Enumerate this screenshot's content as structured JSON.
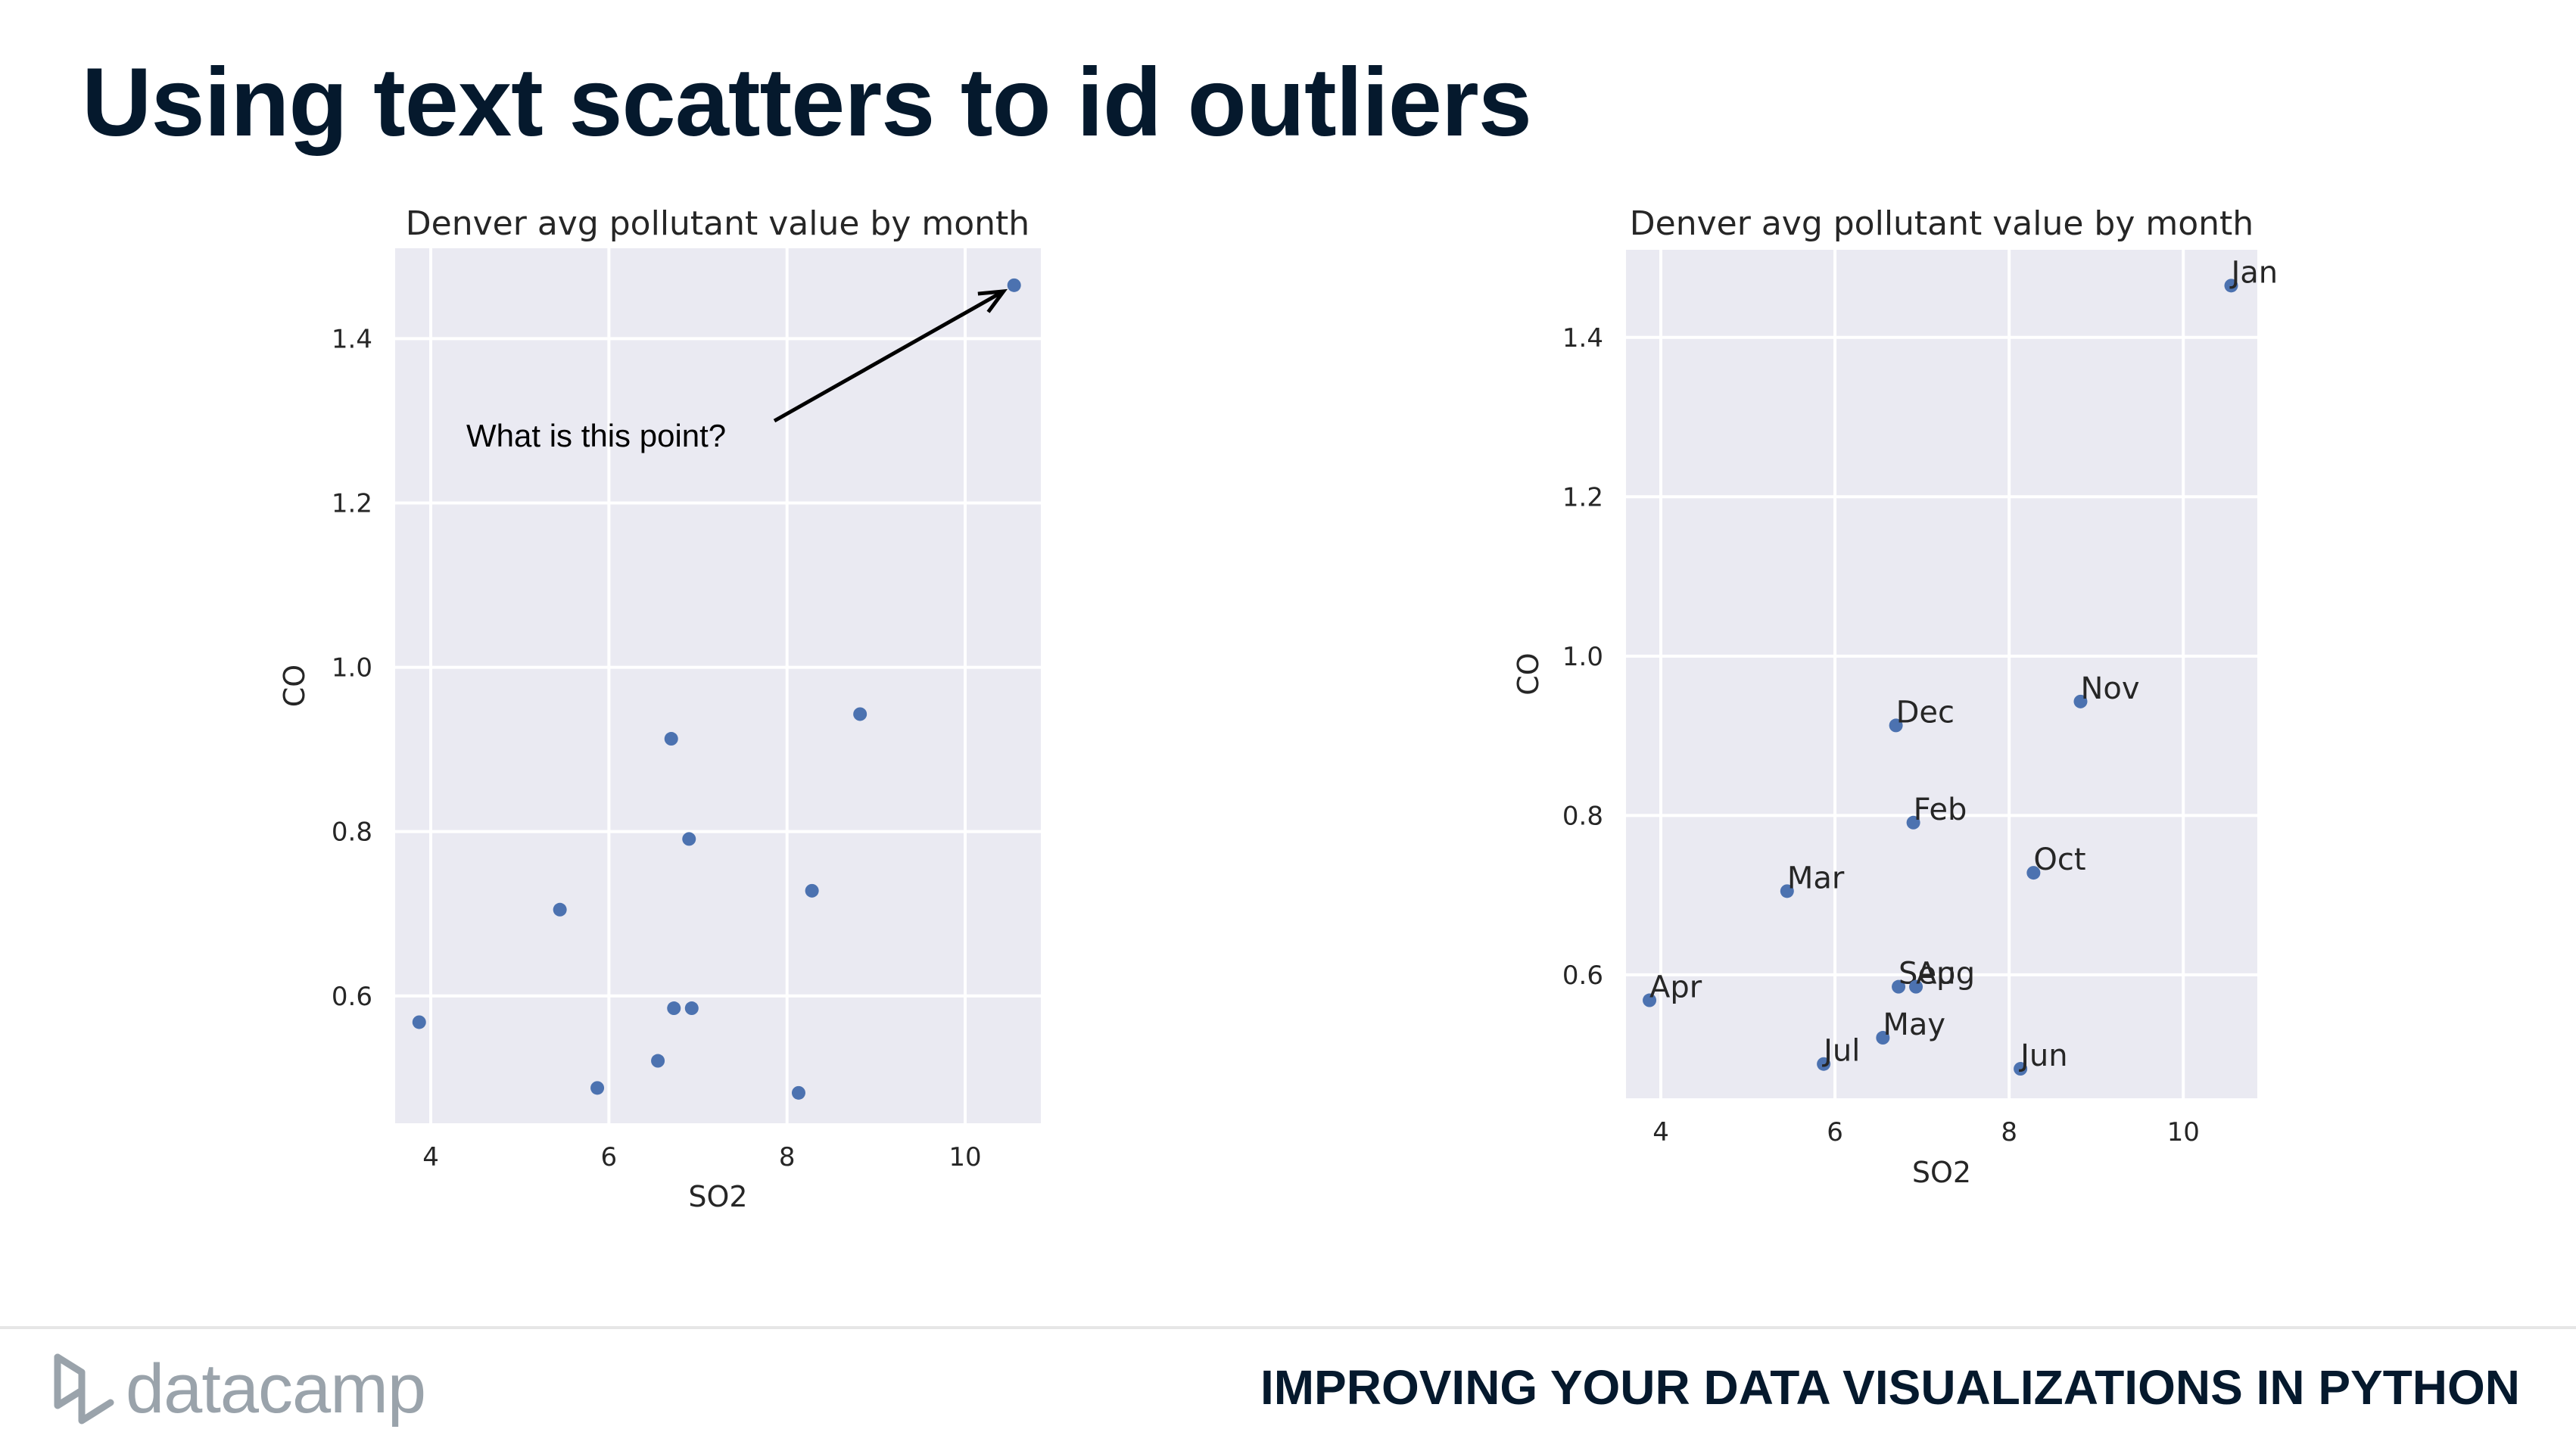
{
  "slide": {
    "title": "Using text scatters to id outliers",
    "course": "IMPROVING YOUR DATA VISUALIZATIONS IN PYTHON",
    "logo_text": "datacamp"
  },
  "colors": {
    "point": "#4c72b0",
    "plot_bg": "#eaeaf2",
    "title": "#05192d"
  },
  "chart_data": [
    {
      "type": "scatter",
      "title": "Denver avg pollutant value by month",
      "xlabel": "SO2",
      "ylabel": "CO",
      "xlim": [
        3.6,
        10.85
      ],
      "ylim": [
        0.445,
        1.51
      ],
      "xticks": [
        4,
        6,
        8,
        10
      ],
      "yticks": [
        0.6,
        0.8,
        1.0,
        1.2,
        1.4
      ],
      "grid": true,
      "annotation": {
        "text": "What is this point?",
        "target": [
          10.55,
          1.465
        ]
      },
      "points": [
        {
          "x": 10.55,
          "y": 1.465
        },
        {
          "x": 8.82,
          "y": 0.943
        },
        {
          "x": 6.7,
          "y": 0.913
        },
        {
          "x": 6.9,
          "y": 0.791
        },
        {
          "x": 8.28,
          "y": 0.728
        },
        {
          "x": 5.45,
          "y": 0.705
        },
        {
          "x": 3.87,
          "y": 0.568
        },
        {
          "x": 6.73,
          "y": 0.585
        },
        {
          "x": 6.93,
          "y": 0.585
        },
        {
          "x": 6.55,
          "y": 0.521
        },
        {
          "x": 5.87,
          "y": 0.488
        },
        {
          "x": 8.13,
          "y": 0.482
        }
      ]
    },
    {
      "type": "scatter",
      "title": "Denver avg pollutant value by month",
      "xlabel": "SO2",
      "ylabel": "CO",
      "xlim": [
        3.6,
        10.85
      ],
      "ylim": [
        0.445,
        1.51
      ],
      "xticks": [
        4,
        6,
        8,
        10
      ],
      "yticks": [
        0.6,
        0.8,
        1.0,
        1.2,
        1.4
      ],
      "grid": true,
      "points": [
        {
          "x": 10.55,
          "y": 1.465,
          "label": "Jan"
        },
        {
          "x": 8.82,
          "y": 0.943,
          "label": "Nov"
        },
        {
          "x": 6.7,
          "y": 0.913,
          "label": "Dec"
        },
        {
          "x": 6.9,
          "y": 0.791,
          "label": "Feb"
        },
        {
          "x": 8.28,
          "y": 0.728,
          "label": "Oct"
        },
        {
          "x": 5.45,
          "y": 0.705,
          "label": "Mar"
        },
        {
          "x": 3.87,
          "y": 0.568,
          "label": "Apr"
        },
        {
          "x": 6.73,
          "y": 0.585,
          "label": "Sep"
        },
        {
          "x": 6.93,
          "y": 0.585,
          "label": "Aug"
        },
        {
          "x": 6.55,
          "y": 0.521,
          "label": "May"
        },
        {
          "x": 5.87,
          "y": 0.488,
          "label": "Jul"
        },
        {
          "x": 8.13,
          "y": 0.482,
          "label": "Jun"
        }
      ]
    }
  ]
}
